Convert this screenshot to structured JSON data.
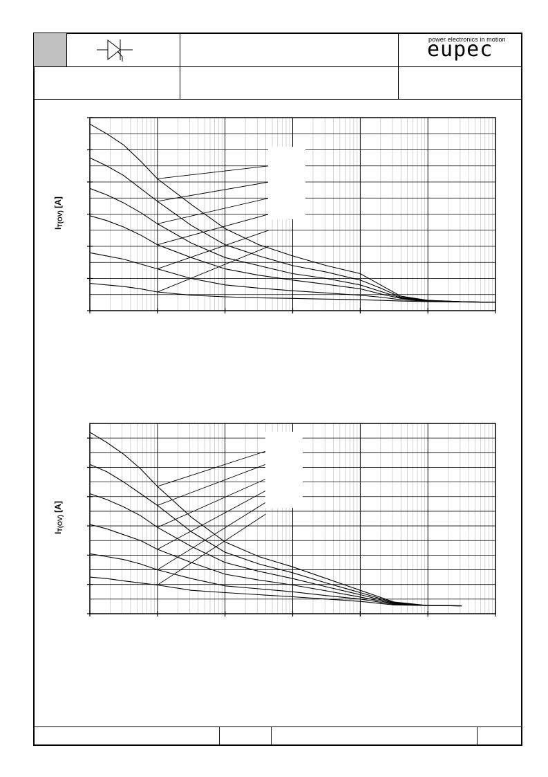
{
  "header": {
    "symbol": "thyristor-symbol",
    "brand_tagline": "power electronics in motion",
    "brand_name": "eupec"
  },
  "charts": [
    {
      "ylabel_main": "I",
      "ylabel_sub": "T(OV)",
      "ylabel_unit": " [A]"
    },
    {
      "ylabel_main": "I",
      "ylabel_sub": "T(OV)",
      "ylabel_unit": " [A]"
    }
  ],
  "chart_data": [
    {
      "type": "line",
      "x_scale": "log",
      "x_decades": 6,
      "ylim": [
        0,
        6
      ],
      "grid": true,
      "curves": [
        [
          [
            0,
            5.8
          ],
          [
            0.25,
            5.5
          ],
          [
            0.5,
            5.15
          ],
          [
            0.75,
            4.65
          ],
          [
            1,
            4.1
          ],
          [
            1.5,
            3.3
          ],
          [
            2,
            2.55
          ],
          [
            2.5,
            2.05
          ],
          [
            3,
            1.7
          ],
          [
            3.5,
            1.4
          ],
          [
            4,
            1.15
          ],
          [
            4.3,
            0.8
          ],
          [
            4.6,
            0.45
          ],
          [
            5,
            0.32
          ],
          [
            5.5,
            0.28
          ],
          [
            6,
            0.26
          ]
        ],
        [
          [
            0,
            4.75
          ],
          [
            0.25,
            4.5
          ],
          [
            0.5,
            4.2
          ],
          [
            0.75,
            3.8
          ],
          [
            1,
            3.4
          ],
          [
            1.5,
            2.65
          ],
          [
            2,
            2.05
          ],
          [
            2.5,
            1.7
          ],
          [
            3,
            1.4
          ],
          [
            3.5,
            1.2
          ],
          [
            4,
            0.95
          ],
          [
            4.3,
            0.7
          ],
          [
            4.6,
            0.42
          ],
          [
            5,
            0.32
          ],
          [
            5.5,
            0.28
          ],
          [
            6,
            0.26
          ]
        ],
        [
          [
            0,
            3.8
          ],
          [
            0.25,
            3.6
          ],
          [
            0.5,
            3.35
          ],
          [
            0.75,
            3.05
          ],
          [
            1,
            2.7
          ],
          [
            1.5,
            2.1
          ],
          [
            2,
            1.65
          ],
          [
            2.5,
            1.4
          ],
          [
            3,
            1.15
          ],
          [
            3.5,
            1.0
          ],
          [
            4,
            0.8
          ],
          [
            4.3,
            0.6
          ],
          [
            4.6,
            0.4
          ],
          [
            5,
            0.31
          ],
          [
            5.5,
            0.28
          ],
          [
            6,
            0.26
          ]
        ],
        [
          [
            0,
            2.95
          ],
          [
            0.25,
            2.8
          ],
          [
            0.5,
            2.6
          ],
          [
            0.75,
            2.35
          ],
          [
            1,
            2.05
          ],
          [
            1.5,
            1.65
          ],
          [
            2,
            1.3
          ],
          [
            2.5,
            1.1
          ],
          [
            3,
            0.95
          ],
          [
            3.5,
            0.82
          ],
          [
            4,
            0.68
          ],
          [
            4.3,
            0.52
          ],
          [
            4.6,
            0.38
          ],
          [
            5,
            0.3
          ],
          [
            5.5,
            0.28
          ],
          [
            6,
            0.26
          ]
        ],
        [
          [
            0,
            1.8
          ],
          [
            0.25,
            1.7
          ],
          [
            0.5,
            1.6
          ],
          [
            0.75,
            1.45
          ],
          [
            1,
            1.3
          ],
          [
            1.5,
            1.0
          ],
          [
            2,
            0.8
          ],
          [
            2.5,
            0.7
          ],
          [
            3,
            0.62
          ],
          [
            3.5,
            0.55
          ],
          [
            4,
            0.48
          ],
          [
            4.3,
            0.42
          ],
          [
            4.6,
            0.34
          ],
          [
            5,
            0.29
          ],
          [
            5.5,
            0.27
          ],
          [
            6,
            0.26
          ]
        ],
        [
          [
            0,
            0.85
          ],
          [
            0.25,
            0.8
          ],
          [
            0.5,
            0.75
          ],
          [
            0.75,
            0.68
          ],
          [
            1,
            0.58
          ],
          [
            1.5,
            0.48
          ],
          [
            2,
            0.43
          ],
          [
            2.5,
            0.4
          ],
          [
            3,
            0.38
          ],
          [
            3.5,
            0.36
          ],
          [
            4,
            0.34
          ],
          [
            4.3,
            0.32
          ],
          [
            4.6,
            0.3
          ],
          [
            5,
            0.28
          ],
          [
            5.5,
            0.27
          ],
          [
            6,
            0.26
          ]
        ]
      ],
      "pointers": [
        [
          [
            1,
            4.1
          ],
          [
            2.65,
            4.5
          ]
        ],
        [
          [
            1,
            3.4
          ],
          [
            2.65,
            4.0
          ]
        ],
        [
          [
            1,
            2.7
          ],
          [
            2.65,
            3.5
          ]
        ],
        [
          [
            1,
            2.05
          ],
          [
            2.65,
            3.0
          ]
        ],
        [
          [
            1,
            1.3
          ],
          [
            2.65,
            2.5
          ]
        ],
        [
          [
            1,
            0.58
          ],
          [
            2.65,
            2.0
          ]
        ]
      ]
    },
    {
      "type": "line",
      "x_scale": "log",
      "x_decades": 6,
      "ylim": [
        0,
        6.5
      ],
      "grid": true,
      "curves": [
        [
          [
            0,
            6.2
          ],
          [
            0.25,
            5.85
          ],
          [
            0.5,
            5.45
          ],
          [
            0.75,
            4.95
          ],
          [
            1,
            4.35
          ],
          [
            1.5,
            3.3
          ],
          [
            2,
            2.45
          ],
          [
            2.5,
            1.95
          ],
          [
            3,
            1.6
          ],
          [
            3.5,
            1.2
          ],
          [
            4,
            0.8
          ],
          [
            4.5,
            0.4
          ],
          [
            5,
            0.28
          ],
          [
            5.5,
            0.27
          ]
        ],
        [
          [
            0,
            5.1
          ],
          [
            0.25,
            4.85
          ],
          [
            0.5,
            4.5
          ],
          [
            0.75,
            4.1
          ],
          [
            1,
            3.7
          ],
          [
            1.5,
            2.8
          ],
          [
            2,
            2.1
          ],
          [
            2.5,
            1.7
          ],
          [
            3,
            1.4
          ],
          [
            3.5,
            1.05
          ],
          [
            4,
            0.72
          ],
          [
            4.5,
            0.38
          ],
          [
            5,
            0.28
          ],
          [
            5.5,
            0.27
          ]
        ],
        [
          [
            0,
            4.1
          ],
          [
            0.25,
            3.9
          ],
          [
            0.5,
            3.65
          ],
          [
            0.75,
            3.35
          ],
          [
            1,
            2.95
          ],
          [
            1.5,
            2.3
          ],
          [
            2,
            1.75
          ],
          [
            2.5,
            1.45
          ],
          [
            3,
            1.2
          ],
          [
            3.5,
            0.92
          ],
          [
            4,
            0.65
          ],
          [
            4.5,
            0.36
          ],
          [
            5,
            0.28
          ],
          [
            5.5,
            0.27
          ]
        ],
        [
          [
            0,
            3.05
          ],
          [
            0.25,
            2.9
          ],
          [
            0.5,
            2.7
          ],
          [
            0.75,
            2.5
          ],
          [
            1,
            2.2
          ],
          [
            1.5,
            1.75
          ],
          [
            2,
            1.35
          ],
          [
            2.5,
            1.15
          ],
          [
            3,
            0.98
          ],
          [
            3.5,
            0.78
          ],
          [
            4,
            0.57
          ],
          [
            4.5,
            0.34
          ],
          [
            5,
            0.28
          ],
          [
            5.5,
            0.27
          ]
        ],
        [
          [
            0,
            2.05
          ],
          [
            0.25,
            1.95
          ],
          [
            0.5,
            1.85
          ],
          [
            0.75,
            1.7
          ],
          [
            1,
            1.5
          ],
          [
            1.5,
            1.2
          ],
          [
            2,
            0.95
          ],
          [
            2.5,
            0.85
          ],
          [
            3,
            0.75
          ],
          [
            3.5,
            0.62
          ],
          [
            4,
            0.5
          ],
          [
            4.5,
            0.32
          ],
          [
            5,
            0.28
          ],
          [
            5.5,
            0.27
          ]
        ],
        [
          [
            0,
            1.25
          ],
          [
            0.25,
            1.2
          ],
          [
            0.5,
            1.12
          ],
          [
            0.75,
            1.05
          ],
          [
            1,
            0.98
          ],
          [
            1.5,
            0.8
          ],
          [
            2,
            0.72
          ],
          [
            2.5,
            0.65
          ],
          [
            3,
            0.58
          ],
          [
            3.5,
            0.5
          ],
          [
            4,
            0.42
          ],
          [
            4.5,
            0.3
          ],
          [
            5,
            0.28
          ],
          [
            5.5,
            0.27
          ]
        ]
      ],
      "pointers": [
        [
          [
            1,
            4.35
          ],
          [
            2.6,
            5.55
          ]
        ],
        [
          [
            1,
            3.7
          ],
          [
            2.6,
            5.1
          ]
        ],
        [
          [
            1,
            2.95
          ],
          [
            2.6,
            4.6
          ]
        ],
        [
          [
            1,
            2.2
          ],
          [
            2.6,
            4.2
          ]
        ],
        [
          [
            1,
            1.5
          ],
          [
            2.6,
            3.8
          ]
        ],
        [
          [
            1,
            0.98
          ],
          [
            2.6,
            3.4
          ]
        ]
      ]
    }
  ]
}
